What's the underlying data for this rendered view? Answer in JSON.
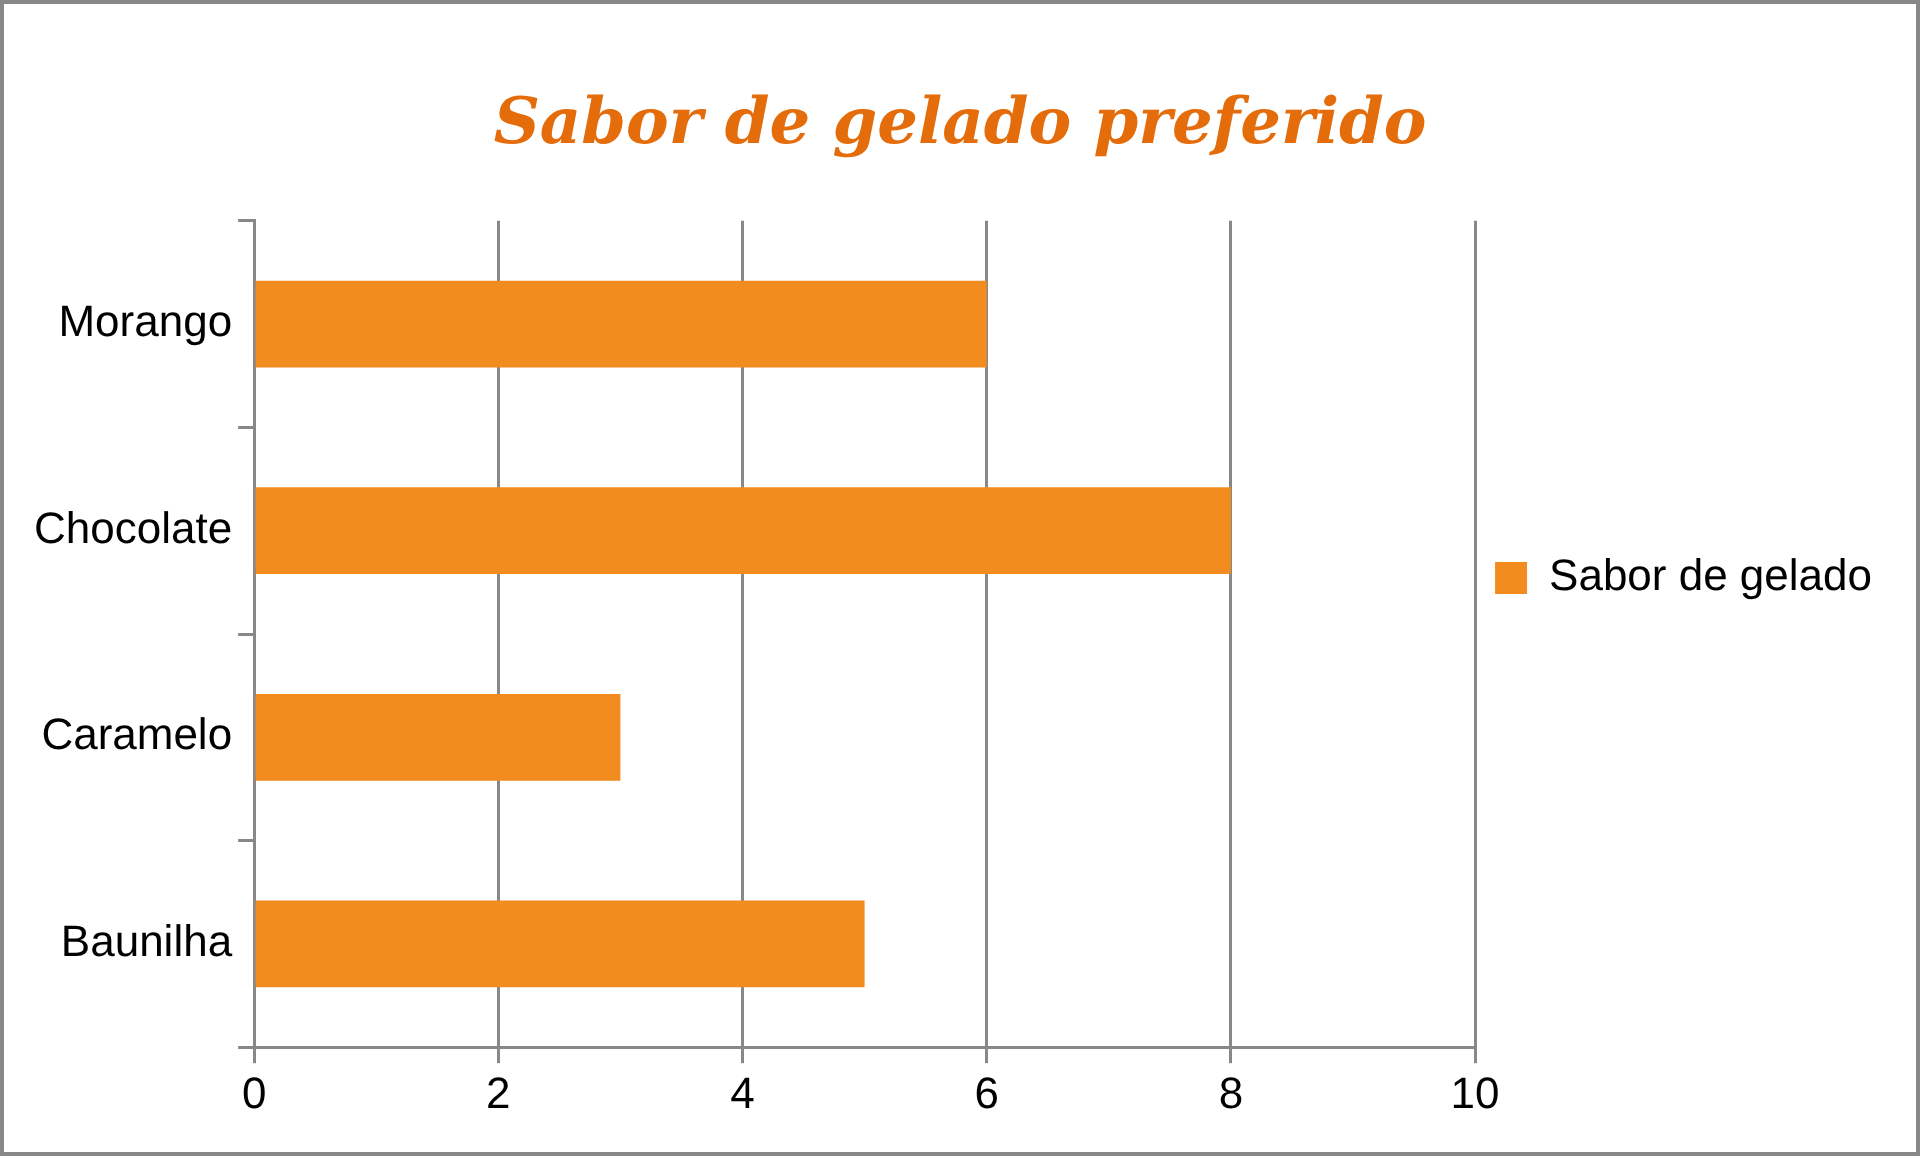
{
  "chart_data": {
    "type": "bar",
    "orientation": "horizontal",
    "title": "Sabor de gelado preferido",
    "categories": [
      "Morango",
      "Chocolate",
      "Caramelo",
      "Baunilha"
    ],
    "series": [
      {
        "name": "Sabor de gelado",
        "color": "#f28c1e",
        "values": [
          6,
          8,
          3,
          5
        ]
      }
    ],
    "xlim": [
      0,
      10
    ],
    "xticks": [
      0,
      2,
      4,
      6,
      8,
      10
    ],
    "grid": "x",
    "legend": "right"
  }
}
